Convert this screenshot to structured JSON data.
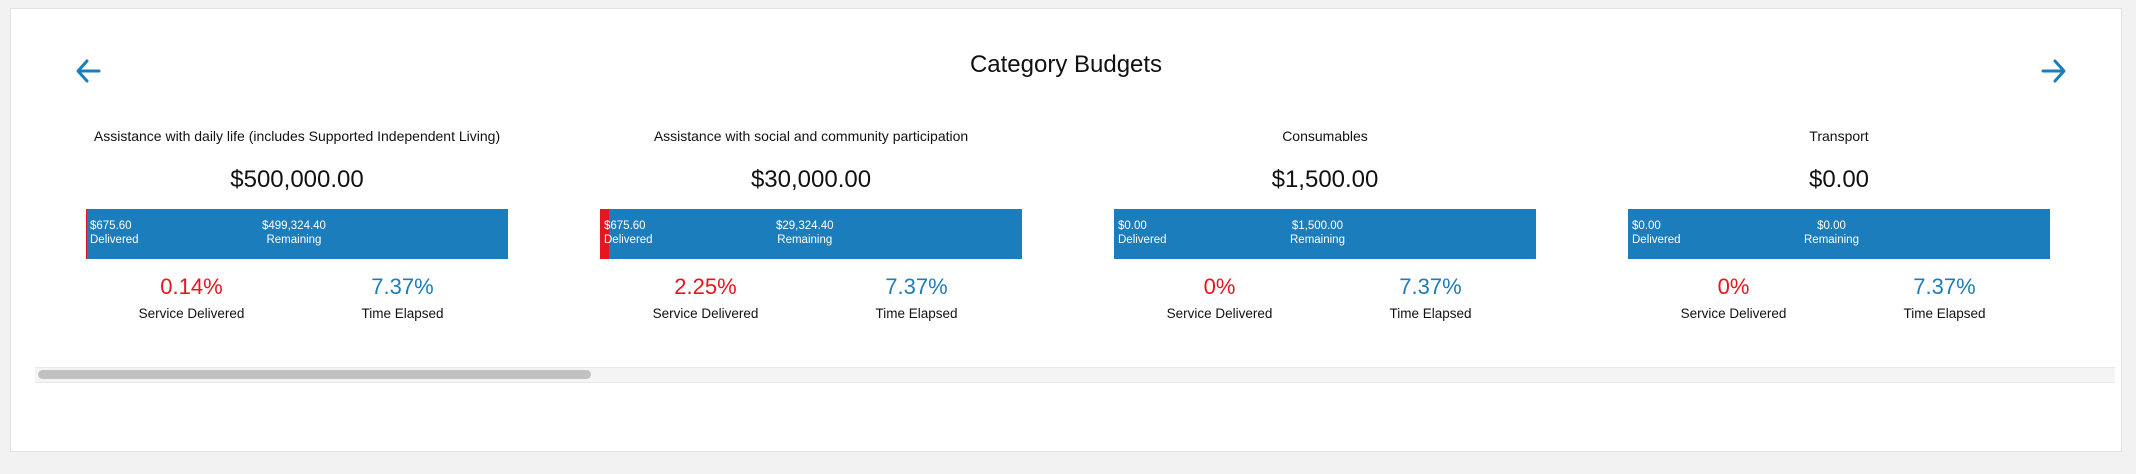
{
  "header": {
    "title": "Category Budgets",
    "prev_icon": "arrow-left-icon",
    "next_icon": "arrow-right-icon",
    "accent_color": "#1b7dbb"
  },
  "colors": {
    "bar": "#1b7dbb",
    "delivered_fill": "#e8141f",
    "service_value": "#e8141f",
    "time_value": "#1b7dbb"
  },
  "cards": [
    {
      "title": "Assistance with daily life (includes Supported Independent Living)",
      "amount": "$500,000.00",
      "delivered_amount": "$675.60",
      "delivered_label": "Delivered",
      "remaining_amount": "$499,324.40",
      "remaining_label": "Remaining",
      "delivered_fraction": 0.0014,
      "service_value": "0.14%",
      "service_label": "Service Delivered",
      "time_value": "7.37%",
      "time_label": "Time Elapsed"
    },
    {
      "title": "Assistance with social and community participation",
      "amount": "$30,000.00",
      "delivered_amount": "$675.60",
      "delivered_label": "Delivered",
      "remaining_amount": "$29,324.40",
      "remaining_label": "Remaining",
      "delivered_fraction": 0.0225,
      "service_value": "2.25%",
      "service_label": "Service Delivered",
      "time_value": "7.37%",
      "time_label": "Time Elapsed"
    },
    {
      "title": "Consumables",
      "amount": "$1,500.00",
      "delivered_amount": "$0.00",
      "delivered_label": "Delivered",
      "remaining_amount": "$1,500.00",
      "remaining_label": "Remaining",
      "delivered_fraction": 0,
      "service_value": "0%",
      "service_label": "Service Delivered",
      "time_value": "7.37%",
      "time_label": "Time Elapsed"
    },
    {
      "title": "Transport",
      "amount": "$0.00",
      "delivered_amount": "$0.00",
      "delivered_label": "Delivered",
      "remaining_amount": "$0.00",
      "remaining_label": "Remaining",
      "delivered_fraction": 0,
      "service_value": "0%",
      "service_label": "Service Delivered",
      "time_value": "7.37%",
      "time_label": "Time Elapsed"
    }
  ],
  "scrollbar": {
    "visible_fraction": 0.266,
    "position_fraction": 0
  }
}
